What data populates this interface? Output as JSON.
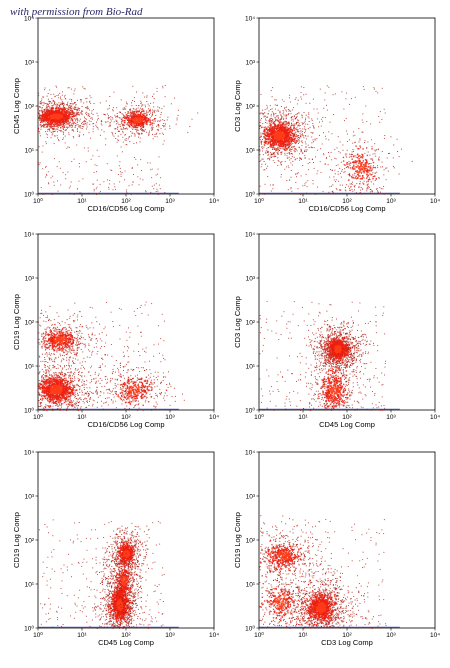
{
  "credit": "with permission from Bio-Rad",
  "colors": {
    "scatter": "#b01a10",
    "density_core": "#ff3b18",
    "density_mid": "#ee2010",
    "baseline": "#2233aa"
  },
  "chart_data": [
    {
      "type": "scatter",
      "xlabel": "CD16/CD56 Log Comp",
      "ylabel": "CD45 Log Comp",
      "xscale": "log",
      "yscale": "log",
      "xlim": [
        1,
        10000
      ],
      "ylim": [
        1,
        10000
      ],
      "xticks": [
        "10⁰",
        "10¹",
        "10²",
        "10³",
        "10⁴"
      ],
      "yticks": [
        "10⁰",
        "10¹",
        "10²",
        "10³",
        "10⁴"
      ],
      "populations": [
        {
          "center": [
            2.5,
            60
          ],
          "spread_decades": [
            0.25,
            0.12
          ],
          "relative_density": 1.0
        },
        {
          "center": [
            180,
            50
          ],
          "spread_decades": [
            0.2,
            0.12
          ],
          "relative_density": 0.45
        }
      ]
    },
    {
      "type": "scatter",
      "xlabel": "CD16/CD56 Log Comp",
      "ylabel": "CD3 Log Comp",
      "xscale": "log",
      "yscale": "log",
      "xlim": [
        1,
        10000
      ],
      "ylim": [
        1,
        10000
      ],
      "xticks": [
        "10⁰",
        "10¹",
        "10²",
        "10³",
        "10⁴"
      ],
      "yticks": [
        "10⁰",
        "10¹",
        "10²",
        "10³",
        "10⁴"
      ],
      "populations": [
        {
          "center": [
            2.8,
            22
          ],
          "spread_decades": [
            0.22,
            0.18
          ],
          "relative_density": 1.0
        },
        {
          "center": [
            200,
            4
          ],
          "spread_decades": [
            0.22,
            0.25
          ],
          "relative_density": 0.25
        }
      ]
    },
    {
      "type": "scatter",
      "xlabel": "CD16/CD56 Log Comp",
      "ylabel": "CD19 Log Comp",
      "xscale": "log",
      "yscale": "log",
      "xlim": [
        1,
        10000
      ],
      "ylim": [
        1,
        10000
      ],
      "xticks": [
        "10⁰",
        "10¹",
        "10²",
        "10³",
        "10⁴"
      ],
      "yticks": [
        "10⁰",
        "10¹",
        "10²",
        "10³",
        "10⁴"
      ],
      "populations": [
        {
          "center": [
            2.5,
            3
          ],
          "spread_decades": [
            0.25,
            0.2
          ],
          "relative_density": 1.0
        },
        {
          "center": [
            3,
            40
          ],
          "spread_decades": [
            0.25,
            0.15
          ],
          "relative_density": 0.45
        },
        {
          "center": [
            150,
            3
          ],
          "spread_decades": [
            0.25,
            0.2
          ],
          "relative_density": 0.3
        }
      ]
    },
    {
      "type": "scatter",
      "xlabel": "CD45 Log Comp",
      "ylabel": "CD3 Log Comp",
      "xscale": "log",
      "yscale": "log",
      "xlim": [
        1,
        10000
      ],
      "ylim": [
        1,
        10000
      ],
      "xticks": [
        "10⁰",
        "10¹",
        "10²",
        "10³",
        "10⁴"
      ],
      "yticks": [
        "10⁰",
        "10¹",
        "10²",
        "10³",
        "10⁴"
      ],
      "populations": [
        {
          "center": [
            60,
            25
          ],
          "spread_decades": [
            0.15,
            0.15
          ],
          "relative_density": 1.0
        },
        {
          "center": [
            50,
            3
          ],
          "spread_decades": [
            0.18,
            0.3
          ],
          "relative_density": 0.45
        }
      ]
    },
    {
      "type": "scatter",
      "xlabel": "CD45 Log Comp",
      "ylabel": "CD19 Log Comp",
      "xscale": "log",
      "yscale": "log",
      "xlim": [
        1,
        10000
      ],
      "ylim": [
        1,
        10000
      ],
      "xticks": [
        "10⁰",
        "10¹",
        "10²",
        "10³",
        "10⁴"
      ],
      "yticks": [
        "10⁰",
        "10¹",
        "10²",
        "10³",
        "10⁴"
      ],
      "populations": [
        {
          "center": [
            70,
            3.5
          ],
          "spread_decades": [
            0.12,
            0.22
          ],
          "relative_density": 1.0
        },
        {
          "center": [
            100,
            50
          ],
          "spread_decades": [
            0.12,
            0.15
          ],
          "relative_density": 0.55
        },
        {
          "center": [
            85,
            12
          ],
          "spread_decades": [
            0.1,
            0.2
          ],
          "relative_density": 0.3
        }
      ]
    },
    {
      "type": "scatter",
      "xlabel": "CD3 Log Comp",
      "ylabel": "CD19 Log Comp",
      "xscale": "log",
      "yscale": "log",
      "xlim": [
        1,
        10000
      ],
      "ylim": [
        1,
        10000
      ],
      "xticks": [
        "10⁰",
        "10¹",
        "10²",
        "10³",
        "10⁴"
      ],
      "yticks": [
        "10⁰",
        "10¹",
        "10²",
        "10³",
        "10⁴"
      ],
      "populations": [
        {
          "center": [
            25,
            3
          ],
          "spread_decades": [
            0.2,
            0.2
          ],
          "relative_density": 1.0
        },
        {
          "center": [
            3.5,
            45
          ],
          "spread_decades": [
            0.25,
            0.18
          ],
          "relative_density": 0.45
        },
        {
          "center": [
            3,
            4
          ],
          "spread_decades": [
            0.25,
            0.25
          ],
          "relative_density": 0.3
        }
      ]
    }
  ]
}
